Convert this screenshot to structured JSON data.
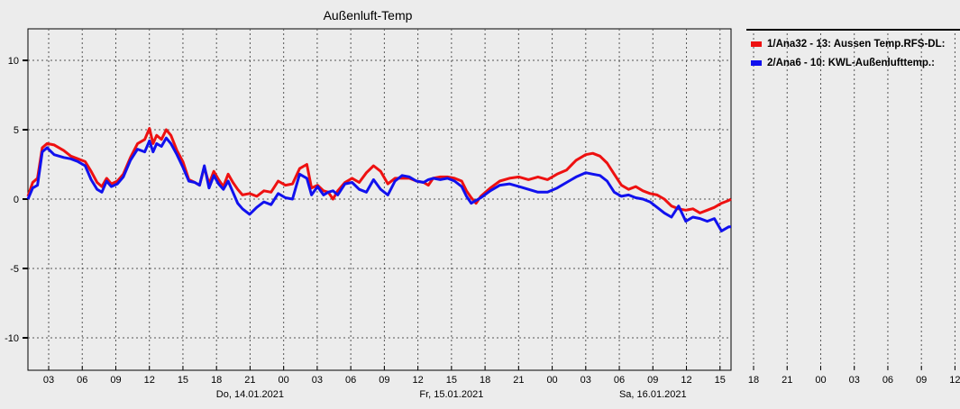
{
  "chart_data": {
    "type": "line",
    "title": "Außenluft-Temp",
    "ylim": [
      -12.5,
      12.5
    ],
    "y_ticks": [
      10,
      5,
      0,
      -5,
      -10
    ],
    "xlim_hours": [
      0,
      59
    ],
    "x_tick_labels": [
      "03",
      "06",
      "09",
      "12",
      "15",
      "18",
      "21",
      "00",
      "03",
      "06",
      "09",
      "12",
      "15",
      "18",
      "21",
      "00",
      "03",
      "06",
      "09",
      "12",
      "15",
      "18",
      "21",
      "00",
      "03",
      "06",
      "09",
      "12"
    ],
    "day_labels": [
      "Do, 14.01.2021",
      "Fr, 15.01.2021",
      "Sa, 16.01.2021"
    ],
    "grid": true,
    "legend_position": "right",
    "series": [
      {
        "name": "1/Ana32 - 13: Aussen Temp.RFS-DL:",
        "color": "#ee1111",
        "points": [
          [
            0,
            0.2
          ],
          [
            0.4,
            1.2
          ],
          [
            0.8,
            1.5
          ],
          [
            1.2,
            3.7
          ],
          [
            1.6,
            4.0
          ],
          [
            2.2,
            3.9
          ],
          [
            3,
            3.5
          ],
          [
            3.6,
            3.1
          ],
          [
            4.2,
            2.9
          ],
          [
            4.8,
            2.7
          ],
          [
            5.3,
            2.0
          ],
          [
            5.8,
            1.2
          ],
          [
            6.2,
            0.9
          ],
          [
            6.6,
            1.5
          ],
          [
            7,
            1.1
          ],
          [
            7.5,
            1.3
          ],
          [
            8,
            1.8
          ],
          [
            8.6,
            3.0
          ],
          [
            9.2,
            4.0
          ],
          [
            9.8,
            4.3
          ],
          [
            10.2,
            5.1
          ],
          [
            10.5,
            4.0
          ],
          [
            10.8,
            4.6
          ],
          [
            11.2,
            4.3
          ],
          [
            11.6,
            5.0
          ],
          [
            12,
            4.6
          ],
          [
            12.5,
            3.5
          ],
          [
            13,
            2.7
          ],
          [
            13.5,
            1.4
          ],
          [
            14,
            1.2
          ],
          [
            14.4,
            1.0
          ],
          [
            14.8,
            2.3
          ],
          [
            15.2,
            1.1
          ],
          [
            15.6,
            2.0
          ],
          [
            16,
            1.4
          ],
          [
            16.4,
            0.9
          ],
          [
            16.8,
            1.8
          ],
          [
            17.2,
            1.2
          ],
          [
            17.6,
            0.7
          ],
          [
            18,
            0.3
          ],
          [
            18.6,
            0.4
          ],
          [
            19.2,
            0.2
          ],
          [
            19.8,
            0.6
          ],
          [
            20.4,
            0.5
          ],
          [
            21,
            1.3
          ],
          [
            21.6,
            1.0
          ],
          [
            22.2,
            1.1
          ],
          [
            22.8,
            2.2
          ],
          [
            23.4,
            2.5
          ],
          [
            23.8,
            0.8
          ],
          [
            24.3,
            1.0
          ],
          [
            24.8,
            0.6
          ],
          [
            25.2,
            0.5
          ],
          [
            25.6,
            0.0
          ],
          [
            26,
            0.6
          ],
          [
            26.6,
            1.2
          ],
          [
            27.2,
            1.5
          ],
          [
            27.8,
            1.2
          ],
          [
            28.4,
            1.9
          ],
          [
            29,
            2.4
          ],
          [
            29.6,
            2.0
          ],
          [
            30.2,
            1.1
          ],
          [
            30.8,
            1.5
          ],
          [
            31.4,
            1.5
          ],
          [
            32,
            1.5
          ],
          [
            32.6,
            1.3
          ],
          [
            33.2,
            1.2
          ],
          [
            33.6,
            1.0
          ],
          [
            34,
            1.5
          ],
          [
            34.6,
            1.6
          ],
          [
            35.2,
            1.6
          ],
          [
            35.8,
            1.5
          ],
          [
            36.4,
            1.3
          ],
          [
            36.8,
            0.6
          ],
          [
            37.2,
            0.1
          ],
          [
            37.6,
            -0.3
          ],
          [
            38,
            0.2
          ],
          [
            38.8,
            0.8
          ],
          [
            39.6,
            1.3
          ],
          [
            40.4,
            1.5
          ],
          [
            41.2,
            1.6
          ],
          [
            42,
            1.4
          ],
          [
            42.8,
            1.6
          ],
          [
            43.6,
            1.4
          ],
          [
            44.4,
            1.8
          ],
          [
            45.2,
            2.1
          ],
          [
            46,
            2.8
          ],
          [
            46.8,
            3.2
          ],
          [
            47.4,
            3.3
          ],
          [
            48,
            3.1
          ],
          [
            48.6,
            2.6
          ],
          [
            49.2,
            1.8
          ],
          [
            49.8,
            1.0
          ],
          [
            50.4,
            0.7
          ],
          [
            51,
            0.9
          ],
          [
            51.6,
            0.6
          ],
          [
            52.2,
            0.4
          ],
          [
            52.8,
            0.3
          ],
          [
            53.4,
            0.0
          ],
          [
            54,
            -0.5
          ],
          [
            54.6,
            -0.7
          ],
          [
            55.2,
            -0.8
          ],
          [
            55.8,
            -0.7
          ],
          [
            56.4,
            -1.0
          ],
          [
            57,
            -0.8
          ],
          [
            57.6,
            -0.6
          ],
          [
            58.2,
            -0.3
          ],
          [
            58.8,
            -0.1
          ],
          [
            59,
            0.0
          ]
        ]
      },
      {
        "name": "2/Ana6 - 10: KWL-Außenlufttemp.:",
        "color": "#1111ee",
        "points": [
          [
            0,
            0.0
          ],
          [
            0.4,
            0.8
          ],
          [
            0.8,
            1.0
          ],
          [
            1.2,
            3.4
          ],
          [
            1.6,
            3.7
          ],
          [
            2.2,
            3.2
          ],
          [
            3,
            3.0
          ],
          [
            3.6,
            2.9
          ],
          [
            4.2,
            2.7
          ],
          [
            4.8,
            2.4
          ],
          [
            5.3,
            1.4
          ],
          [
            5.8,
            0.7
          ],
          [
            6.2,
            0.5
          ],
          [
            6.6,
            1.3
          ],
          [
            7,
            0.9
          ],
          [
            7.5,
            1.1
          ],
          [
            8,
            1.6
          ],
          [
            8.6,
            2.8
          ],
          [
            9.2,
            3.6
          ],
          [
            9.8,
            3.4
          ],
          [
            10.2,
            4.2
          ],
          [
            10.5,
            3.4
          ],
          [
            10.8,
            4.0
          ],
          [
            11.2,
            3.8
          ],
          [
            11.6,
            4.4
          ],
          [
            12,
            4.0
          ],
          [
            12.5,
            3.2
          ],
          [
            13,
            2.3
          ],
          [
            13.5,
            1.3
          ],
          [
            14,
            1.2
          ],
          [
            14.4,
            1.0
          ],
          [
            14.8,
            2.4
          ],
          [
            15.2,
            0.8
          ],
          [
            15.6,
            1.7
          ],
          [
            16,
            1.1
          ],
          [
            16.4,
            0.7
          ],
          [
            16.8,
            1.3
          ],
          [
            17.2,
            0.5
          ],
          [
            17.6,
            -0.3
          ],
          [
            18,
            -0.7
          ],
          [
            18.6,
            -1.1
          ],
          [
            19.2,
            -0.6
          ],
          [
            19.8,
            -0.2
          ],
          [
            20.4,
            -0.4
          ],
          [
            21,
            0.4
          ],
          [
            21.6,
            0.1
          ],
          [
            22.2,
            0.0
          ],
          [
            22.8,
            1.8
          ],
          [
            23.4,
            1.5
          ],
          [
            23.8,
            0.3
          ],
          [
            24.3,
            0.9
          ],
          [
            24.8,
            0.3
          ],
          [
            25.2,
            0.5
          ],
          [
            25.6,
            0.6
          ],
          [
            26,
            0.3
          ],
          [
            26.6,
            1.1
          ],
          [
            27.2,
            1.2
          ],
          [
            27.8,
            0.7
          ],
          [
            28.4,
            0.5
          ],
          [
            29,
            1.4
          ],
          [
            29.6,
            0.7
          ],
          [
            30.2,
            0.3
          ],
          [
            30.8,
            1.3
          ],
          [
            31.4,
            1.7
          ],
          [
            32,
            1.6
          ],
          [
            32.6,
            1.3
          ],
          [
            33.2,
            1.2
          ],
          [
            33.6,
            1.4
          ],
          [
            34,
            1.5
          ],
          [
            34.6,
            1.4
          ],
          [
            35.2,
            1.5
          ],
          [
            35.8,
            1.3
          ],
          [
            36.4,
            0.9
          ],
          [
            36.8,
            0.2
          ],
          [
            37.2,
            -0.3
          ],
          [
            37.6,
            -0.1
          ],
          [
            38,
            0.1
          ],
          [
            38.8,
            0.6
          ],
          [
            39.6,
            1.0
          ],
          [
            40.4,
            1.1
          ],
          [
            41.2,
            0.9
          ],
          [
            42,
            0.7
          ],
          [
            42.8,
            0.5
          ],
          [
            43.6,
            0.5
          ],
          [
            44.4,
            0.8
          ],
          [
            45.2,
            1.2
          ],
          [
            46,
            1.6
          ],
          [
            46.8,
            1.9
          ],
          [
            47.4,
            1.8
          ],
          [
            48,
            1.7
          ],
          [
            48.6,
            1.3
          ],
          [
            49.2,
            0.5
          ],
          [
            49.8,
            0.2
          ],
          [
            50.4,
            0.3
          ],
          [
            51,
            0.1
          ],
          [
            51.6,
            0.0
          ],
          [
            52.2,
            -0.2
          ],
          [
            52.8,
            -0.6
          ],
          [
            53.4,
            -1.0
          ],
          [
            54,
            -1.3
          ],
          [
            54.6,
            -0.5
          ],
          [
            55.2,
            -1.6
          ],
          [
            55.8,
            -1.3
          ],
          [
            56.4,
            -1.4
          ],
          [
            57,
            -1.6
          ],
          [
            57.6,
            -1.4
          ],
          [
            58.2,
            -2.3
          ],
          [
            58.8,
            -2.0
          ],
          [
            59,
            -2.0
          ]
        ]
      }
    ]
  }
}
